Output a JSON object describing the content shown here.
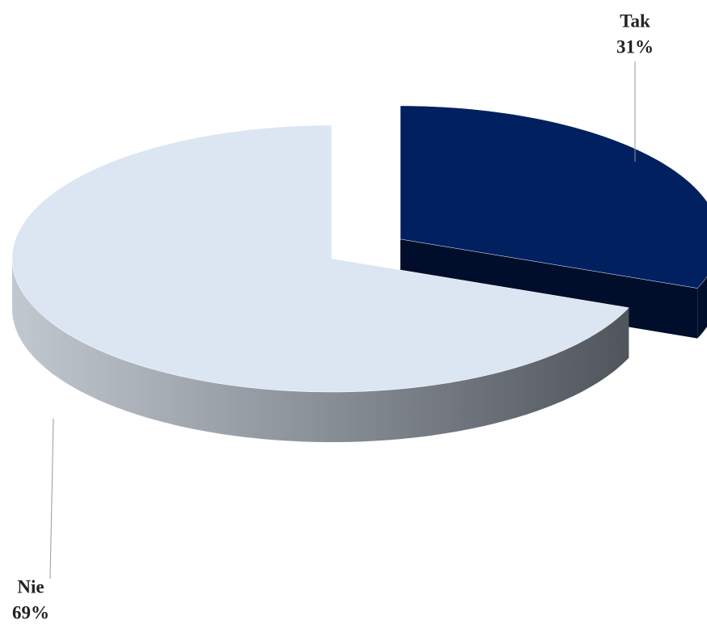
{
  "chart_data": {
    "type": "pie",
    "categories": [
      "Tak",
      "Nie"
    ],
    "values": [
      31,
      69
    ],
    "value_labels": [
      "31%",
      "69%"
    ],
    "colors": [
      "#002060",
      "#dce6f2"
    ],
    "explode": [
      true,
      false
    ]
  }
}
